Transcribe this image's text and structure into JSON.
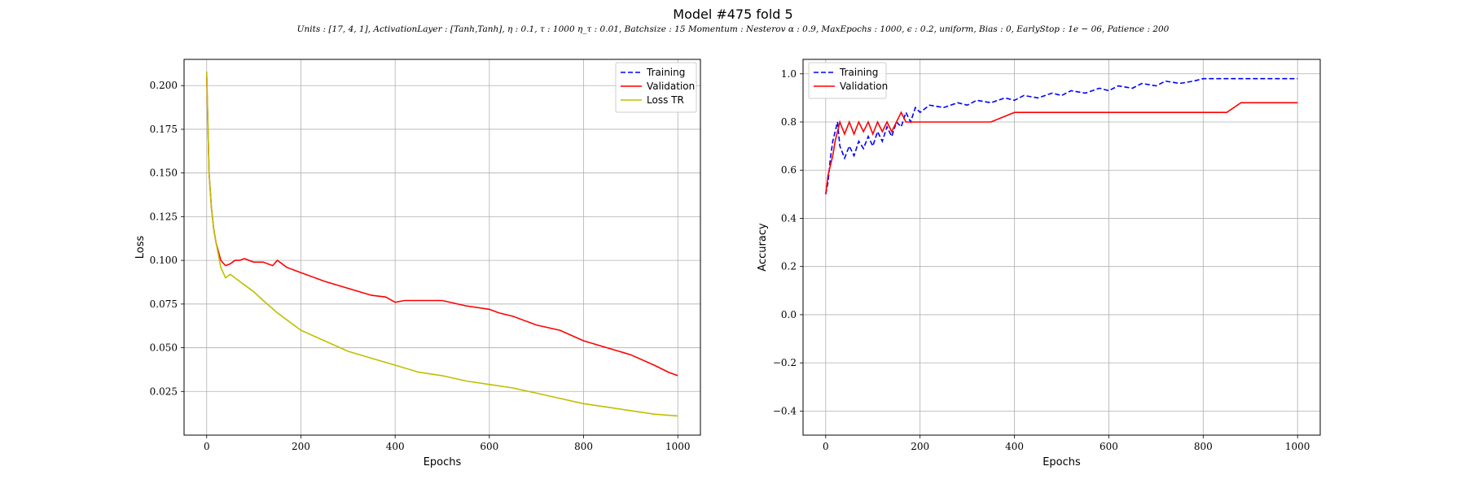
{
  "figure": {
    "title": "Model #475 fold 5",
    "subtitle": "Units : [17, 4, 1], ActivationLayer : [Tanh,Tanh], η : 0.1, τ : 1000 η_τ : 0.01, Batchsize : 15 Momentum : Nesterov α : 0.9, MaxEpochs : 1000, ϵ : 0.2, uniform, Bias : 0, EarlyStop : 1e − 06, Patience : 200"
  },
  "chart_data": [
    {
      "type": "line",
      "xlabel": "Epochs",
      "ylabel": "Loss",
      "xlim": [
        -48,
        1048
      ],
      "ylim": [
        0.0,
        0.215
      ],
      "xticks": [
        0,
        200,
        400,
        600,
        800,
        1000
      ],
      "yticks": [
        0.025,
        0.05,
        0.075,
        0.1,
        0.125,
        0.15,
        0.175,
        0.2
      ],
      "ytick_labels": [
        "0.025",
        "0.050",
        "0.075",
        "0.100",
        "0.125",
        "0.150",
        "0.175",
        "0.200"
      ],
      "grid": true,
      "legend_position": "top-right",
      "series": [
        {
          "name": "Training",
          "color": "#0000ff",
          "dash": "dashed",
          "x": [],
          "y": []
        },
        {
          "name": "Validation",
          "color": "#ff0000",
          "dash": "solid",
          "x": [
            0,
            5,
            10,
            15,
            20,
            30,
            40,
            50,
            60,
            70,
            80,
            100,
            120,
            140,
            150,
            170,
            200,
            250,
            300,
            350,
            380,
            400,
            420,
            450,
            500,
            550,
            600,
            620,
            650,
            700,
            750,
            800,
            850,
            900,
            950,
            980,
            1000
          ],
          "y": [
            0.205,
            0.15,
            0.13,
            0.118,
            0.11,
            0.1,
            0.097,
            0.098,
            0.1,
            0.1,
            0.101,
            0.099,
            0.099,
            0.097,
            0.1,
            0.096,
            0.093,
            0.088,
            0.084,
            0.08,
            0.079,
            0.076,
            0.077,
            0.077,
            0.077,
            0.074,
            0.072,
            0.07,
            0.068,
            0.063,
            0.06,
            0.054,
            0.05,
            0.046,
            0.04,
            0.036,
            0.034
          ]
        },
        {
          "name": "Loss TR",
          "color": "#bfbf00",
          "dash": "solid",
          "x": [
            0,
            5,
            10,
            15,
            20,
            30,
            40,
            50,
            60,
            80,
            100,
            120,
            150,
            170,
            200,
            250,
            300,
            350,
            400,
            450,
            500,
            550,
            600,
            650,
            700,
            750,
            800,
            850,
            900,
            950,
            1000
          ],
          "y": [
            0.208,
            0.15,
            0.13,
            0.118,
            0.11,
            0.096,
            0.09,
            0.092,
            0.09,
            0.086,
            0.082,
            0.077,
            0.07,
            0.066,
            0.06,
            0.054,
            0.048,
            0.044,
            0.04,
            0.036,
            0.034,
            0.031,
            0.029,
            0.027,
            0.024,
            0.021,
            0.018,
            0.016,
            0.014,
            0.012,
            0.011
          ]
        }
      ]
    },
    {
      "type": "line",
      "xlabel": "Epochs",
      "ylabel": "Accuracy",
      "xlim": [
        -48,
        1048
      ],
      "ylim": [
        -0.5,
        1.06
      ],
      "xticks": [
        0,
        200,
        400,
        600,
        800,
        1000
      ],
      "yticks": [
        -0.4,
        -0.2,
        0.0,
        0.2,
        0.4,
        0.6,
        0.8,
        1.0
      ],
      "ytick_labels": [
        "−0.4",
        "−0.2",
        "0.0",
        "0.2",
        "0.4",
        "0.6",
        "0.8",
        "1.0"
      ],
      "grid": true,
      "legend_position": "top-left",
      "series": [
        {
          "name": "Training",
          "color": "#0000ff",
          "dash": "dashed",
          "x": [
            0,
            5,
            10,
            15,
            20,
            25,
            30,
            40,
            50,
            60,
            70,
            80,
            90,
            100,
            110,
            120,
            130,
            140,
            150,
            160,
            170,
            180,
            190,
            200,
            220,
            250,
            280,
            300,
            320,
            350,
            380,
            400,
            420,
            450,
            480,
            500,
            520,
            550,
            580,
            600,
            620,
            650,
            670,
            700,
            720,
            750,
            780,
            800,
            820,
            850,
            880,
            900,
            920,
            950,
            980,
            1000
          ],
          "y": [
            0.5,
            0.55,
            0.65,
            0.72,
            0.76,
            0.8,
            0.7,
            0.65,
            0.7,
            0.66,
            0.72,
            0.69,
            0.74,
            0.7,
            0.76,
            0.72,
            0.78,
            0.74,
            0.8,
            0.78,
            0.84,
            0.8,
            0.86,
            0.84,
            0.87,
            0.86,
            0.88,
            0.87,
            0.89,
            0.88,
            0.9,
            0.89,
            0.91,
            0.9,
            0.92,
            0.91,
            0.93,
            0.92,
            0.94,
            0.93,
            0.95,
            0.94,
            0.96,
            0.95,
            0.97,
            0.96,
            0.97,
            0.98,
            0.98,
            0.98,
            0.98,
            0.98,
            0.98,
            0.98,
            0.98,
            0.98
          ]
        },
        {
          "name": "Validation",
          "color": "#ff0000",
          "dash": "solid",
          "x": [
            0,
            5,
            10,
            15,
            20,
            25,
            30,
            40,
            50,
            60,
            70,
            80,
            90,
            100,
            110,
            120,
            130,
            140,
            150,
            160,
            170,
            200,
            250,
            300,
            350,
            400,
            450,
            500,
            550,
            600,
            650,
            700,
            750,
            800,
            850,
            880,
            900,
            950,
            1000
          ],
          "y": [
            0.5,
            0.58,
            0.62,
            0.66,
            0.72,
            0.76,
            0.8,
            0.75,
            0.8,
            0.75,
            0.8,
            0.76,
            0.8,
            0.75,
            0.8,
            0.76,
            0.8,
            0.76,
            0.8,
            0.84,
            0.8,
            0.8,
            0.8,
            0.8,
            0.8,
            0.84,
            0.84,
            0.84,
            0.84,
            0.84,
            0.84,
            0.84,
            0.84,
            0.84,
            0.84,
            0.88,
            0.88,
            0.88,
            0.88
          ]
        }
      ]
    }
  ]
}
